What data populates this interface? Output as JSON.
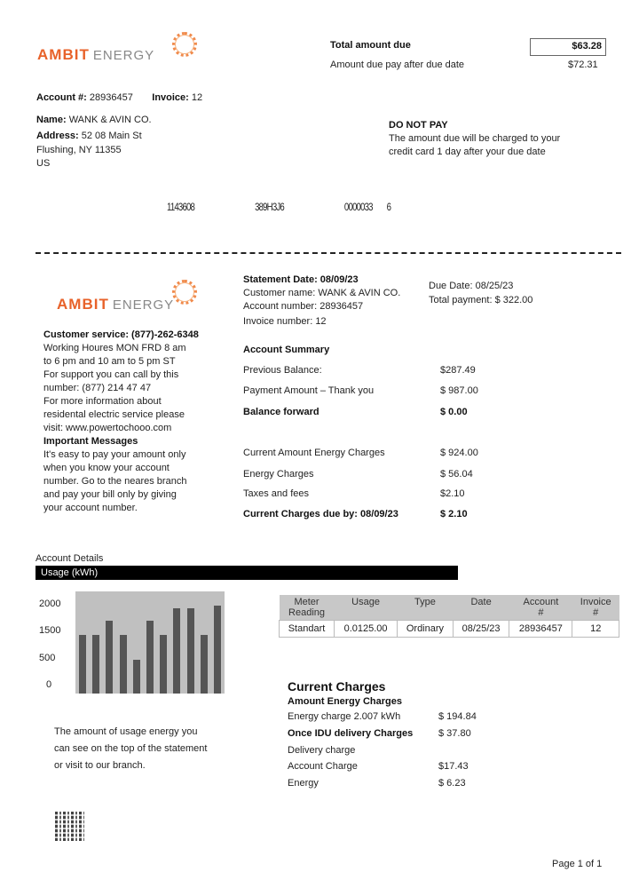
{
  "brand": {
    "name_1": "AMBIT",
    "name_2": "ENERGY",
    "accent": "#e8622a"
  },
  "header": {
    "total_due_label": "Total amount due",
    "total_due_value": "$63.28",
    "after_due_label": "Amount due pay after due date",
    "after_due_value": "$72.31",
    "account_label": "Account #:",
    "account_value": "28936457",
    "invoice_label": "Invoice:",
    "invoice_value": "12",
    "name_label": "Name:",
    "name_value": "WANK & AVIN CO.",
    "address_label": "Address:",
    "address_line1": "52 08 Main St",
    "address_line2": "Flushing, NY 11355",
    "address_line3": "US",
    "notice_title": "DO NOT PAY",
    "notice_line1": "The amount due will be charged to your",
    "notice_line2": "credit card 1 day after your due date",
    "scan_codes": [
      "1143608",
      "389H3J6",
      "0000033",
      "6"
    ]
  },
  "statement": {
    "date": "Statement Date: 08/09/23",
    "customer": "Customer name: WANK & AVIN CO.",
    "account": "Account number: 28936457",
    "invoice": "Invoice number: 12",
    "due_date": "Due Date: 08/25/23",
    "total_payment": "Total payment: $ 322.00"
  },
  "left_info": {
    "service": "Customer service: (877)-262-6348",
    "lines": [
      "Working Houres  MON FRD 8 am",
      "to 6 pm and 10 am to 5 pm ST",
      "For support you can call by this",
      "number: (877)  214 47 47",
      "For more information about",
      "residental electric service please",
      "visit: www.powertochooo.com"
    ],
    "messages_title": "Important Messages",
    "messages": [
      "It's easy to pay your amount only",
      "when you know your account",
      "number. Go to the neares branch",
      "and pay your bill only by giving",
      "your account number."
    ]
  },
  "summary": {
    "title": "Account Summary",
    "rows": [
      {
        "label": "Previous Balance:",
        "value": "$287.49",
        "bold": false
      },
      {
        "label": "Payment Amount – Thank you",
        "value": "$ 987.00",
        "bold": false
      },
      {
        "label": "Balance forward",
        "value": "$ 0.00",
        "bold": true
      },
      {
        "label": "Current Amount Energy Charges",
        "value": "$ 924.00",
        "bold": false
      },
      {
        "label": "Energy Charges",
        "value": "$ 56.04",
        "bold": false
      },
      {
        "label": "Taxes and fees",
        "value": "$2.10",
        "bold": false
      },
      {
        "label": "Current Charges due by: 08/09/23",
        "value": "$ 2.10",
        "bold": true
      }
    ]
  },
  "details": {
    "title": "Account Details",
    "usage_header": "Usage (kWh)",
    "usage_note": [
      "The amount of usage energy you",
      "can see on the top of the statement",
      "or visit to our branch."
    ],
    "table": {
      "headers": [
        [
          "Meter",
          "Reading"
        ],
        [
          "Usage",
          ""
        ],
        [
          "Type",
          ""
        ],
        [
          "Date",
          ""
        ],
        [
          "Account",
          "#"
        ],
        [
          "Invoice",
          "#"
        ]
      ],
      "rows": [
        [
          "Standart",
          "0.0125.00",
          "Ordinary",
          "08/25/23",
          "28936457",
          "12"
        ]
      ]
    }
  },
  "chart_data": {
    "type": "bar",
    "title": "",
    "xlabel": "",
    "ylabel": "",
    "y_tick_labels": [
      "2000",
      "1500",
      "500",
      "0"
    ],
    "values": [
      1200,
      1200,
      1500,
      1200,
      700,
      1500,
      1200,
      1750,
      1750,
      1200,
      1800
    ],
    "ylim": [
      0,
      2000
    ],
    "grid": false,
    "bar_color": "#555555",
    "background": "#c0c0c0"
  },
  "charges": {
    "title": "Current Charges",
    "subtitle": "Amount Energy Charges",
    "rows": [
      {
        "label": "Energy charge 2.007 kWh",
        "value": "$ 194.84",
        "bold": false
      },
      {
        "label": "Once IDU delivery Charges",
        "value": "$ 37.80",
        "bold": true
      },
      {
        "label": "Delivery charge",
        "value": "",
        "bold": false
      },
      {
        "label": "Account Charge",
        "value": "$17.43",
        "bold": false
      },
      {
        "label": "Energy",
        "value": "$ 6.23",
        "bold": false
      }
    ]
  },
  "footer": {
    "page": "Page 1 of 1"
  }
}
